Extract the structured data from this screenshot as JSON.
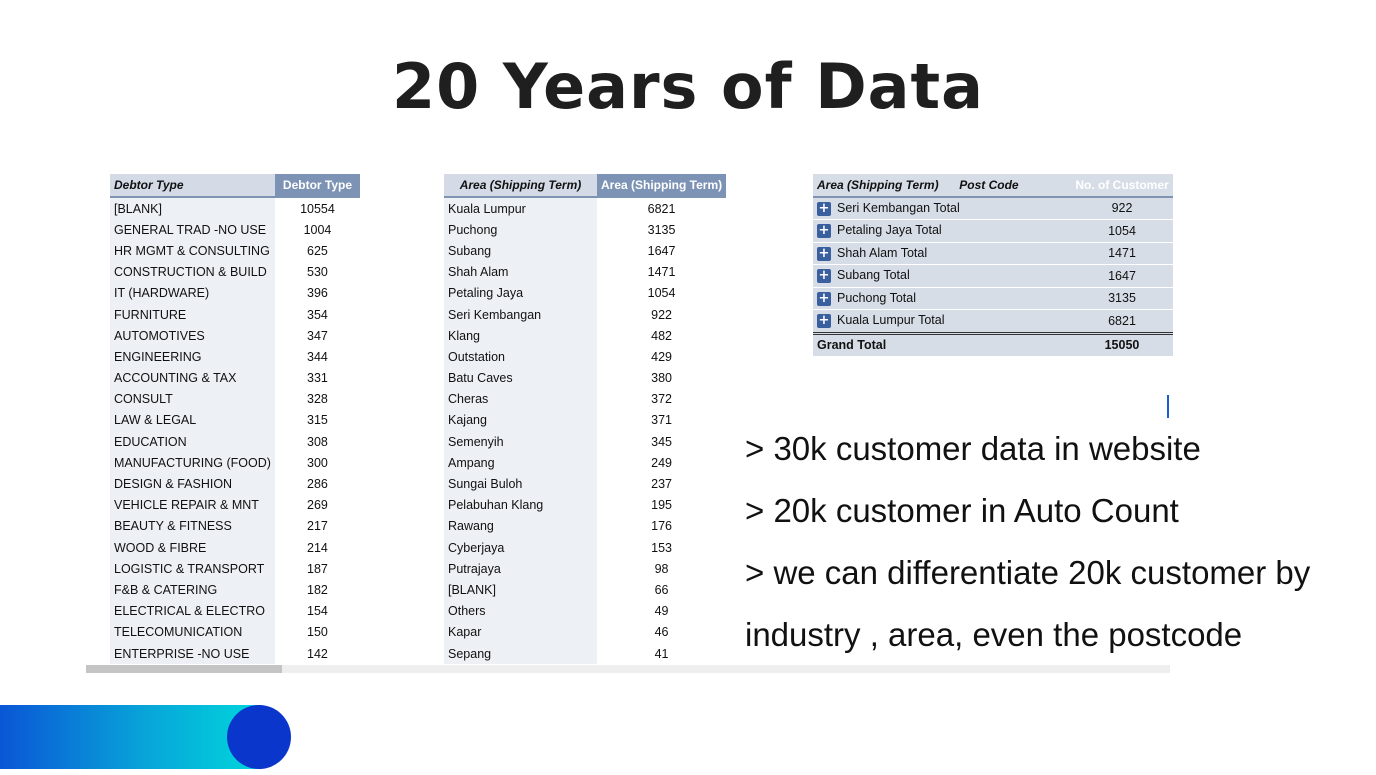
{
  "slide": {
    "title": "20 Years of Data",
    "bullets": [
      "> 30k customer data in website",
      "> 20k customer in Auto Count",
      "> we can differentiate 20k customer  by",
      "industry , area, even the postcode"
    ]
  },
  "debtor_table": {
    "headers": [
      "Debtor Type",
      "Debtor Type"
    ],
    "rows": [
      [
        "[BLANK]",
        "10554"
      ],
      [
        "GENERAL TRAD -NO USE",
        "1004"
      ],
      [
        "HR MGMT & CONSULTING",
        "625"
      ],
      [
        "CONSTRUCTION & BUILD",
        "530"
      ],
      [
        "IT (HARDWARE)",
        "396"
      ],
      [
        "FURNITURE",
        "354"
      ],
      [
        "AUTOMOTIVES",
        "347"
      ],
      [
        "ENGINEERING",
        "344"
      ],
      [
        "ACCOUNTING & TAX",
        "331"
      ],
      [
        "CONSULT",
        "328"
      ],
      [
        "LAW & LEGAL",
        "315"
      ],
      [
        "EDUCATION",
        "308"
      ],
      [
        "MANUFACTURING (FOOD)",
        "300"
      ],
      [
        "DESIGN & FASHION",
        "286"
      ],
      [
        "VEHICLE REPAIR & MNT",
        "269"
      ],
      [
        "BEAUTY & FITNESS",
        "217"
      ],
      [
        "WOOD & FIBRE",
        "214"
      ],
      [
        "LOGISTIC & TRANSPORT",
        "187"
      ],
      [
        "F&B & CATERING",
        "182"
      ],
      [
        "ELECTRICAL & ELECTRO",
        "154"
      ],
      [
        "TELECOMUNICATION",
        "150"
      ],
      [
        "ENTERPRISE -NO USE",
        "142"
      ]
    ]
  },
  "area_table": {
    "headers": [
      "Area (Shipping Term)",
      "Area (Shipping Term)"
    ],
    "rows": [
      [
        "Kuala Lumpur",
        "6821"
      ],
      [
        "Puchong",
        "3135"
      ],
      [
        "Subang",
        "1647"
      ],
      [
        "Shah Alam",
        "1471"
      ],
      [
        "Petaling Jaya",
        "1054"
      ],
      [
        "Seri Kembangan",
        "922"
      ],
      [
        "Klang",
        "482"
      ],
      [
        "Outstation",
        "429"
      ],
      [
        "Batu Caves",
        "380"
      ],
      [
        "Cheras",
        "372"
      ],
      [
        "Kajang",
        "371"
      ],
      [
        "Semenyih",
        "345"
      ],
      [
        "Ampang",
        "249"
      ],
      [
        "Sungai Buloh",
        "237"
      ],
      [
        "Pelabuhan Klang",
        "195"
      ],
      [
        "Rawang",
        "176"
      ],
      [
        "Cyberjaya",
        "153"
      ],
      [
        "Putrajaya",
        "98"
      ],
      [
        "[BLANK]",
        "66"
      ],
      [
        "Others",
        "49"
      ],
      [
        "Kapar",
        "46"
      ],
      [
        "Sepang",
        "41"
      ]
    ]
  },
  "pivot_table": {
    "header_area": "Area (Shipping Term)",
    "header_postcode": "Post Code",
    "header_count": "No. of Customer",
    "expand_glyph": "+",
    "rows": [
      [
        "Seri Kembangan Total",
        "922"
      ],
      [
        "Petaling Jaya Total",
        "1054"
      ],
      [
        "Shah Alam Total",
        "1471"
      ],
      [
        "Subang Total",
        "1647"
      ],
      [
        "Puchong Total",
        "3135"
      ],
      [
        "Kuala Lumpur Total",
        "6821"
      ]
    ],
    "grand_label": "Grand Total",
    "grand_value": "15050"
  }
}
